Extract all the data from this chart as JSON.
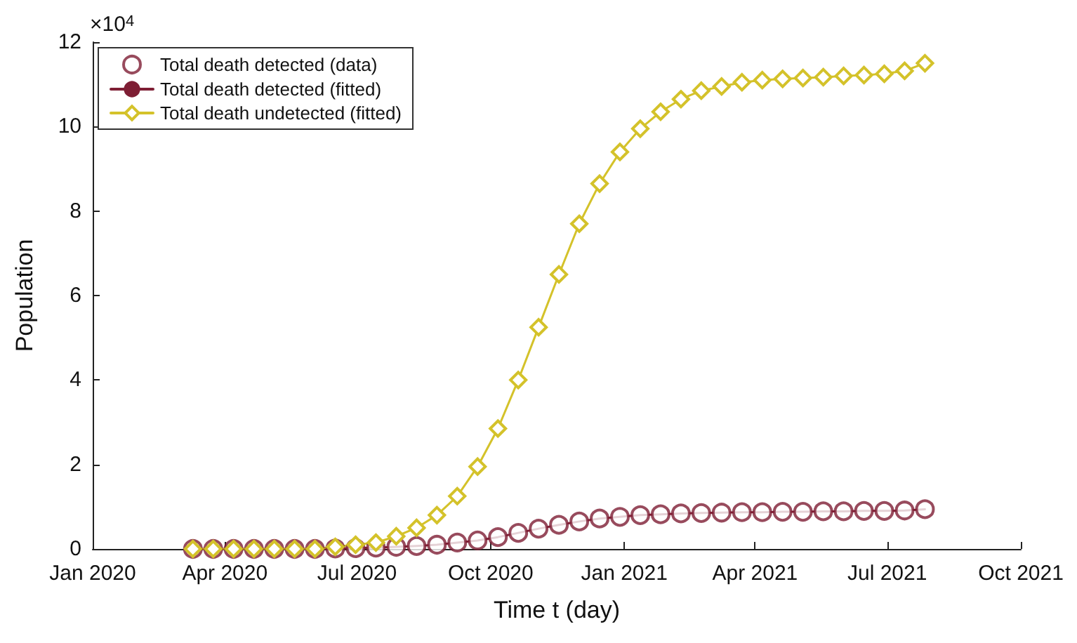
{
  "chart_data": {
    "type": "line",
    "xlabel": "Time t (day)",
    "ylabel": "Population",
    "annotations": [
      "×10$^{4}$"
    ],
    "x": [
      "2020-03-10",
      "2020-03-24",
      "2020-04-07",
      "2020-04-21",
      "2020-05-05",
      "2020-05-19",
      "2020-06-02",
      "2020-06-16",
      "2020-06-30",
      "2020-07-14",
      "2020-07-28",
      "2020-08-11",
      "2020-08-25",
      "2020-09-08",
      "2020-09-22",
      "2020-10-06",
      "2020-10-20",
      "2020-11-03",
      "2020-11-17",
      "2020-12-01",
      "2020-12-15",
      "2020-12-29",
      "2021-01-12",
      "2021-01-26",
      "2021-02-09",
      "2021-02-23",
      "2021-03-09",
      "2021-03-23",
      "2021-04-06",
      "2021-04-20",
      "2021-05-04",
      "2021-05-18",
      "2021-06-01",
      "2021-06-15",
      "2021-06-29",
      "2021-07-13",
      "2021-07-27"
    ],
    "series": [
      {
        "name": "Total death detected (data)",
        "type": "scatter",
        "marker": "circle",
        "color": "#7e1e34",
        "values": [
          0,
          0,
          0,
          0,
          0,
          0,
          0,
          0.01,
          0.02,
          0.03,
          0.05,
          0.07,
          0.1,
          0.15,
          0.2,
          0.28,
          0.38,
          0.48,
          0.57,
          0.65,
          0.72,
          0.76,
          0.8,
          0.82,
          0.84,
          0.85,
          0.86,
          0.87,
          0.87,
          0.88,
          0.88,
          0.89,
          0.89,
          0.9,
          0.9,
          0.91,
          0.94
        ]
      },
      {
        "name": "Total death detected (fitted)",
        "marker": "none",
        "color": "#7e1e34",
        "values": [
          0,
          0,
          0,
          0,
          0,
          0,
          0,
          0.01,
          0.02,
          0.03,
          0.05,
          0.07,
          0.1,
          0.15,
          0.2,
          0.28,
          0.38,
          0.48,
          0.57,
          0.65,
          0.72,
          0.76,
          0.8,
          0.82,
          0.84,
          0.85,
          0.86,
          0.87,
          0.87,
          0.88,
          0.88,
          0.89,
          0.89,
          0.9,
          0.9,
          0.91,
          0.94
        ]
      },
      {
        "name": "Total death undetected (fitted)",
        "type": "line",
        "marker": "diamond",
        "color": "#d4c22a",
        "values": [
          0,
          0,
          0,
          0,
          0,
          0,
          0,
          0.05,
          0.1,
          0.15,
          0.3,
          0.5,
          0.8,
          1.25,
          1.95,
          2.85,
          4.0,
          5.25,
          6.5,
          7.7,
          8.65,
          9.4,
          9.95,
          10.35,
          10.65,
          10.85,
          10.95,
          11.05,
          11.1,
          11.13,
          11.15,
          11.17,
          11.2,
          11.22,
          11.25,
          11.32,
          11.5
        ]
      }
    ],
    "xlim": [
      "2020-01-01",
      "2021-10-01"
    ],
    "xticks": [
      {
        "value": "2020-01-01",
        "label": "Jan 2020"
      },
      {
        "value": "2020-04-01",
        "label": "Apr 2020"
      },
      {
        "value": "2020-07-01",
        "label": "Jul 2020"
      },
      {
        "value": "2020-10-01",
        "label": "Oct 2020"
      },
      {
        "value": "2021-01-01",
        "label": "Jan 2021"
      },
      {
        "value": "2021-04-01",
        "label": "Apr 2021"
      },
      {
        "value": "2021-07-01",
        "label": "Jul 2021"
      },
      {
        "value": "2021-10-01",
        "label": "Oct 2021"
      }
    ],
    "ylim": [
      0,
      12
    ],
    "yticks": [
      0,
      2,
      4,
      6,
      8,
      10,
      12
    ],
    "grid": false,
    "legend": "top left",
    "line_style": "solid"
  }
}
